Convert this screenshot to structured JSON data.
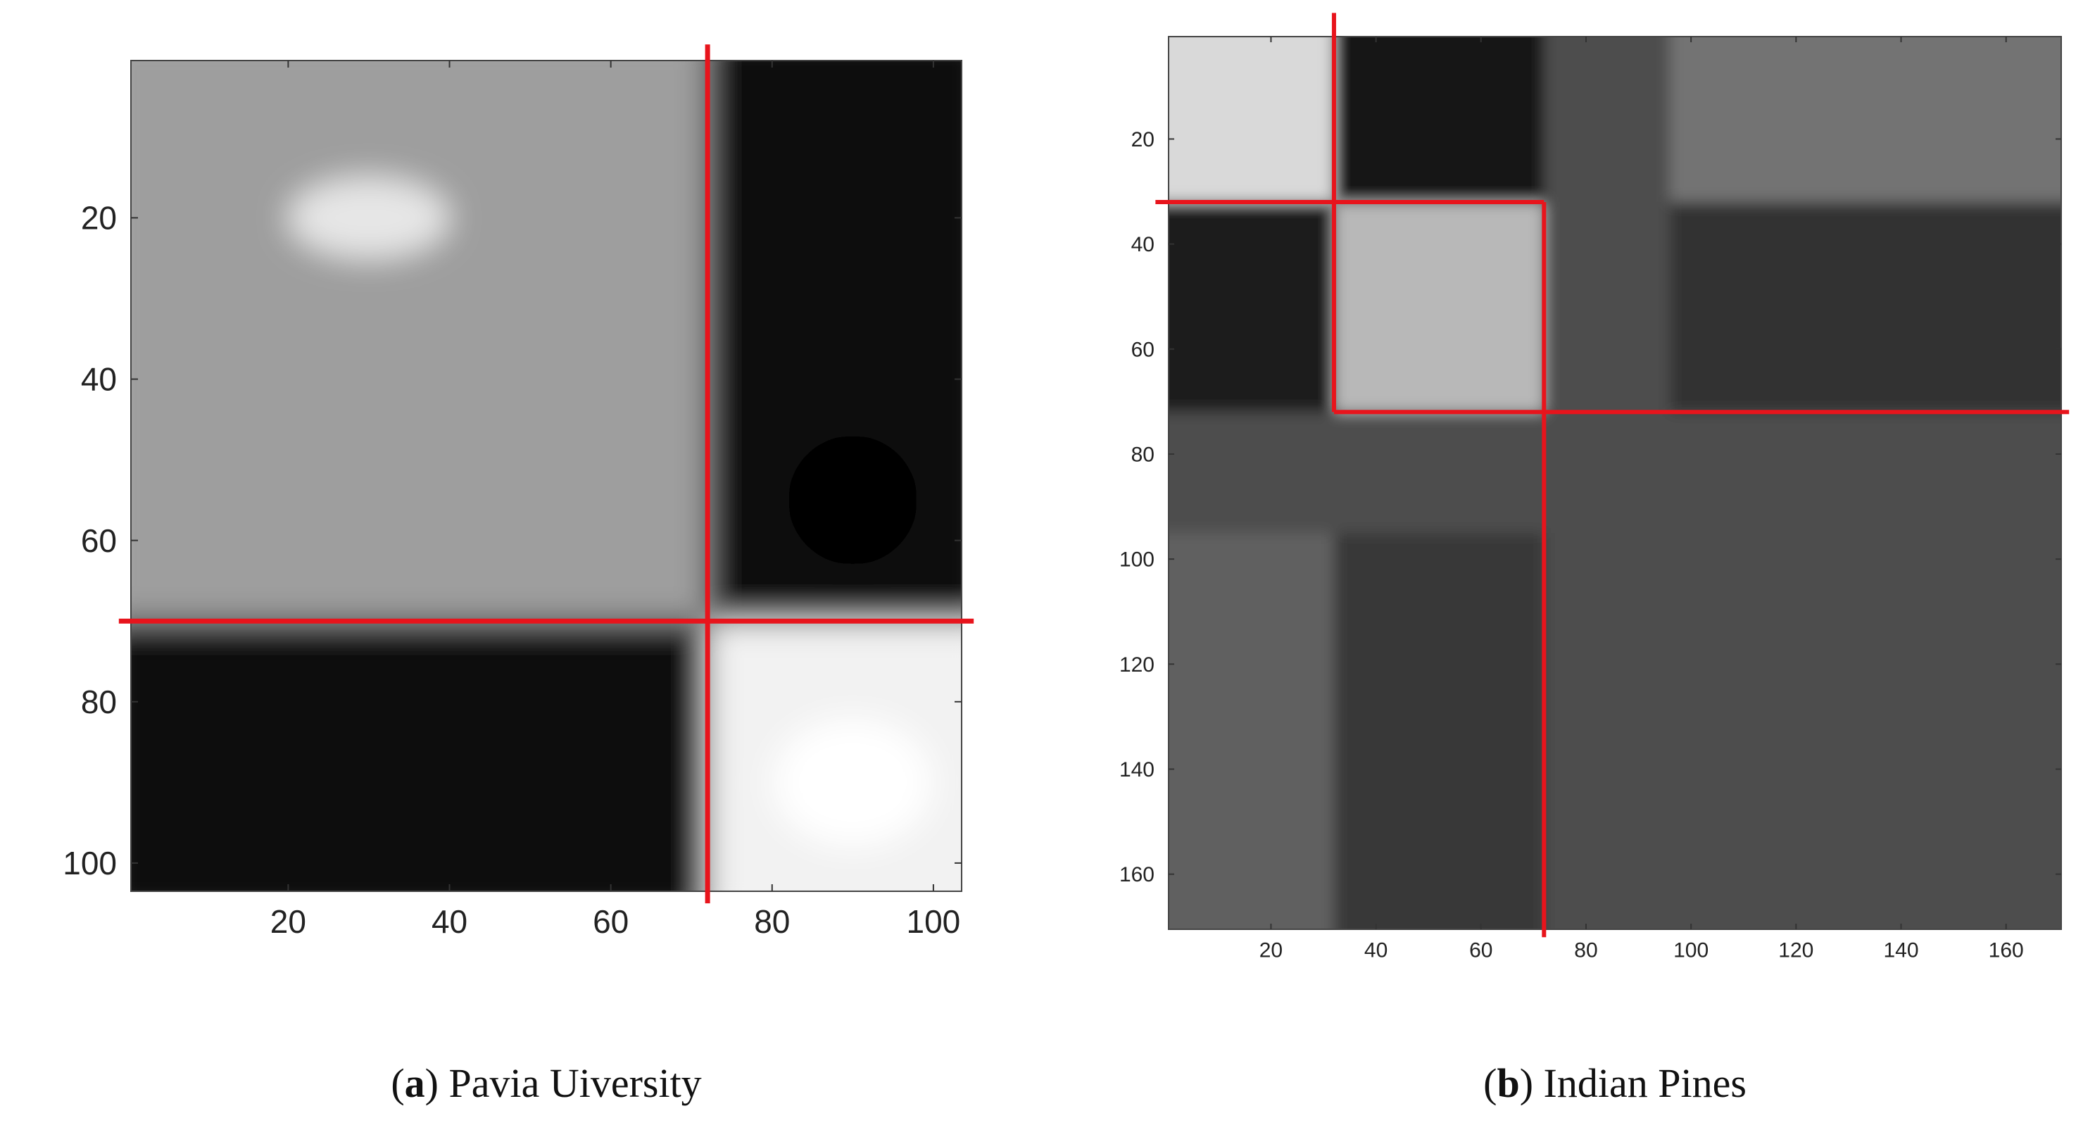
{
  "chart_data": [
    {
      "type": "heatmap",
      "title": "",
      "xlabel": "",
      "ylabel": "",
      "xlim": [
        0.5,
        103.5
      ],
      "ylim": [
        0.5,
        103.5
      ],
      "y_inverted": true,
      "xticks": [
        20,
        40,
        60,
        80,
        100
      ],
      "yticks": [
        20,
        40,
        60,
        80,
        100
      ],
      "colormap": "gray",
      "grid": false,
      "blocks": [
        {
          "x_range": [
            0.5,
            72
          ],
          "y_range": [
            0.5,
            70
          ],
          "intensity": 0.62
        },
        {
          "x_range": [
            72,
            103.5
          ],
          "y_range": [
            0.5,
            70
          ],
          "intensity": 0.05
        },
        {
          "x_range": [
            0.5,
            72
          ],
          "y_range": [
            70,
            103.5
          ],
          "intensity": 0.05
        },
        {
          "x_range": [
            72,
            103.5
          ],
          "y_range": [
            70,
            103.5
          ],
          "intensity": 0.95
        }
      ],
      "highlights": [
        {
          "x": [
            30,
            10
          ],
          "y": [
            20,
            5
          ],
          "intensity": 0.9
        },
        {
          "x": [
            90,
            10
          ],
          "y": [
            90,
            8
          ],
          "intensity": 1.0
        },
        {
          "x": [
            90,
            8
          ],
          "y": [
            55,
            8
          ],
          "intensity": 0.0
        }
      ],
      "partition_lines": [
        {
          "orientation": "vertical",
          "at": 72
        },
        {
          "orientation": "horizontal",
          "at": 70
        }
      ],
      "line_color": "#e8141c",
      "caption_letter": "a",
      "caption_text": "Pavia Uiversity"
    },
    {
      "type": "heatmap",
      "title": "",
      "xlabel": "",
      "ylabel": "",
      "xlim": [
        0.5,
        170.5
      ],
      "ylim": [
        0.5,
        170.5
      ],
      "y_inverted": true,
      "xticks": [
        20,
        40,
        60,
        80,
        100,
        120,
        140,
        160
      ],
      "yticks": [
        20,
        40,
        60,
        80,
        100,
        120,
        140,
        160
      ],
      "colormap": "gray",
      "grid": false,
      "background_intensity": 0.3,
      "blocks": [
        {
          "x_range": [
            0.5,
            32
          ],
          "y_range": [
            0.5,
            32
          ],
          "intensity": 0.85
        },
        {
          "x_range": [
            32,
            72
          ],
          "y_range": [
            0.5,
            32
          ],
          "intensity": 0.08
        },
        {
          "x_range": [
            0.5,
            32
          ],
          "y_range": [
            32,
            72
          ],
          "intensity": 0.1
        },
        {
          "x_range": [
            32,
            72
          ],
          "y_range": [
            32,
            72
          ],
          "intensity": 0.72
        },
        {
          "x_range": [
            96,
            170.5
          ],
          "y_range": [
            0.5,
            32
          ],
          "intensity": 0.45
        },
        {
          "x_range": [
            96,
            170.5
          ],
          "y_range": [
            32,
            72
          ],
          "intensity": 0.2
        },
        {
          "x_range": [
            0.5,
            32
          ],
          "y_range": [
            95,
            170.5
          ],
          "intensity": 0.38
        },
        {
          "x_range": [
            32,
            72
          ],
          "y_range": [
            95,
            170.5
          ],
          "intensity": 0.22
        }
      ],
      "partition_lines": [
        {
          "orientation": "vertical",
          "at": 32,
          "y_range": [
            -4,
            32
          ]
        },
        {
          "orientation": "horizontal",
          "at": 32,
          "x_range": [
            -2,
            72
          ]
        },
        {
          "orientation": "vertical",
          "at": 72,
          "y_range": [
            32,
            172
          ]
        },
        {
          "orientation": "vertical",
          "at": 32,
          "y_range": [
            32,
            72
          ]
        },
        {
          "orientation": "horizontal",
          "at": 72,
          "x_range": [
            32,
            172
          ]
        }
      ],
      "line_color": "#e8141c",
      "caption_letter": "b",
      "caption_text": "Indian Pines"
    }
  ]
}
